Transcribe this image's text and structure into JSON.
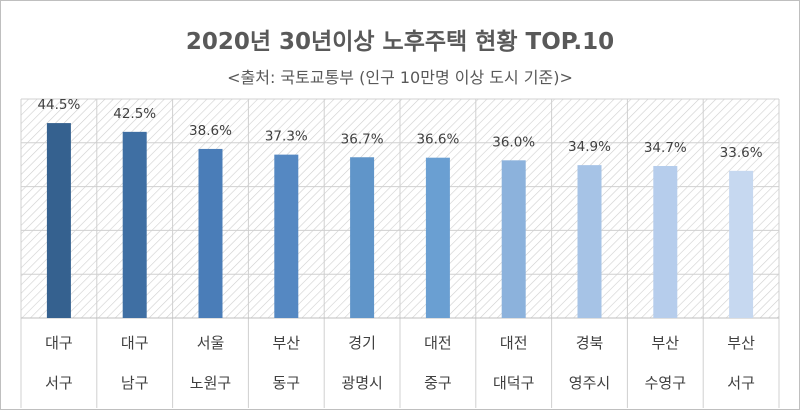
{
  "title": "2020년 30년이상 노후주택 현황 TOP.10",
  "subtitle": "<출처: 국토교통부 (인구 10만명 이상 도시 기준)>",
  "chart_data": {
    "type": "bar",
    "categories": [
      [
        "대구",
        "서구"
      ],
      [
        "대구",
        "남구"
      ],
      [
        "서울",
        "노원구"
      ],
      [
        "부산",
        "동구"
      ],
      [
        "경기",
        "광명시"
      ],
      [
        "대전",
        "중구"
      ],
      [
        "대전",
        "대덕구"
      ],
      [
        "경북",
        "영주시"
      ],
      [
        "부산",
        "수영구"
      ],
      [
        "부산",
        "서구"
      ]
    ],
    "values": [
      44.5,
      42.5,
      38.6,
      37.3,
      36.7,
      36.6,
      36.0,
      34.9,
      34.7,
      33.6
    ],
    "value_labels": [
      "44.5%",
      "42.5%",
      "38.6%",
      "37.3%",
      "36.7%",
      "36.6%",
      "36.0%",
      "34.9%",
      "34.7%",
      "33.6%"
    ],
    "colors": [
      "#35618f",
      "#3f6fa3",
      "#4a7db8",
      "#5588c2",
      "#6095c9",
      "#6a9fd2",
      "#8cb2dc",
      "#a6c3e6",
      "#b6cdec",
      "#c6d8f0"
    ],
    "ylim": [
      0,
      50
    ],
    "grid": true,
    "legend": "none"
  }
}
